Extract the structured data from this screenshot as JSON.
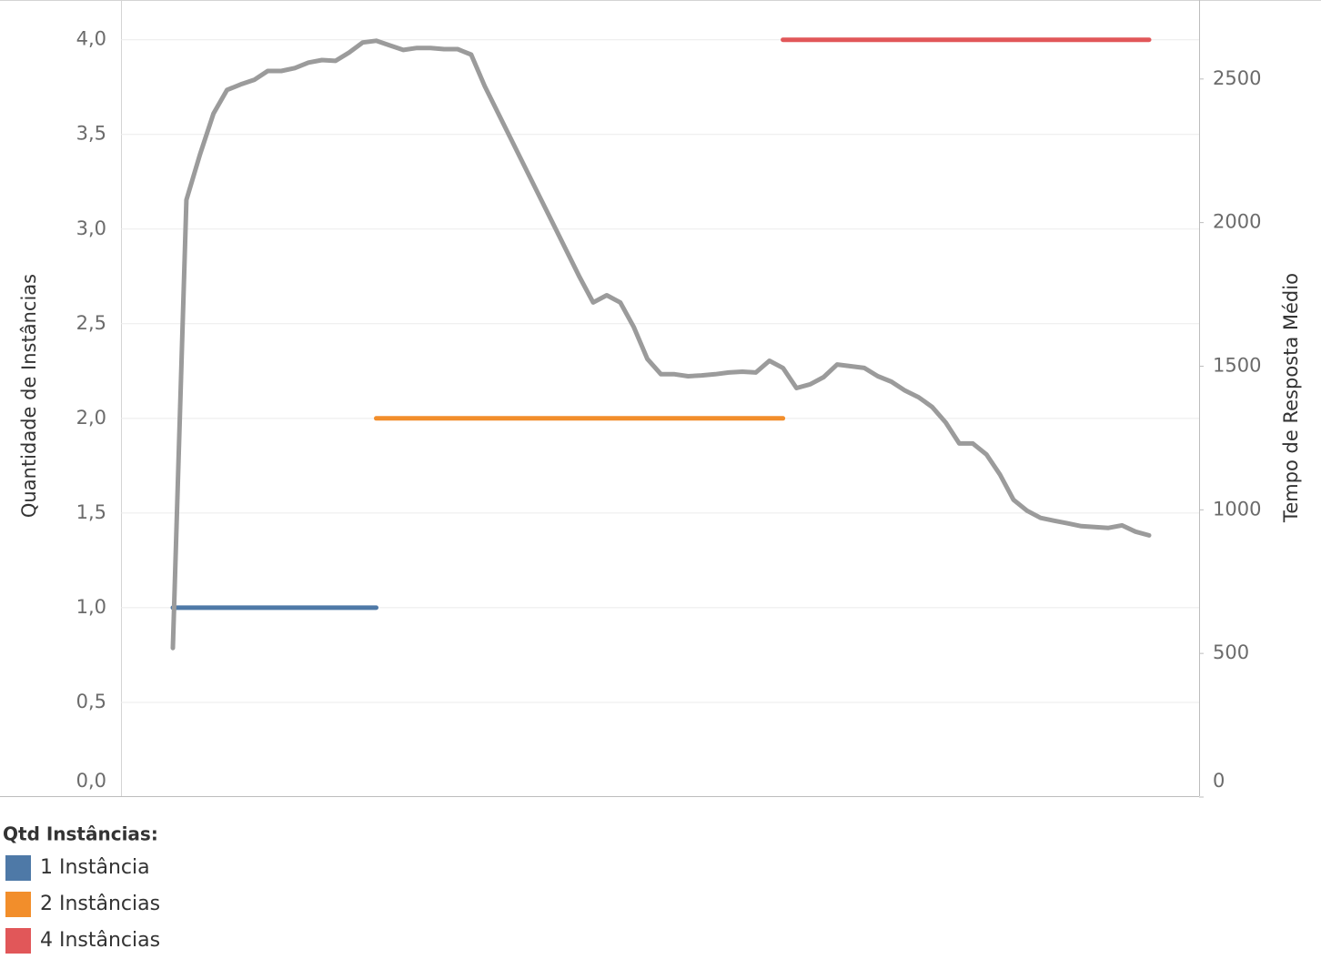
{
  "chart_data": {
    "type": "line",
    "y_label": "Quantidade de Instâncias",
    "y2_label": "Tempo de Resposta Médio",
    "legend_title": "Qtd Instâncias:",
    "categories": [
      null,
      null,
      null,
      null,
      null,
      null,
      null,
      null,
      null,
      null,
      null,
      null,
      null,
      null,
      null,
      null,
      null,
      null,
      null,
      null,
      null,
      null,
      null,
      null,
      null,
      null,
      null,
      null,
      null,
      null,
      null,
      null,
      null,
      null,
      null,
      null,
      null,
      null,
      null,
      null,
      null,
      null,
      null,
      null,
      null,
      null,
      null,
      null,
      null,
      null,
      null,
      null,
      null,
      null,
      null,
      null,
      null,
      null,
      null,
      null,
      null,
      null,
      null,
      null,
      null,
      null,
      null,
      null,
      null,
      null,
      null,
      null,
      null
    ],
    "ylim": [
      0,
      4.21
    ],
    "yticks": [
      {
        "value": 0,
        "label": "0,0"
      },
      {
        "value": 0.5,
        "label": "0,5"
      },
      {
        "value": 1,
        "label": "1,0"
      },
      {
        "value": 1.5,
        "label": "1,5"
      },
      {
        "value": 2,
        "label": "2,0"
      },
      {
        "value": 2.5,
        "label": "2,5"
      },
      {
        "value": 3,
        "label": "3,0"
      },
      {
        "value": 3.5,
        "label": "3,5"
      },
      {
        "value": 4,
        "label": "4,0"
      }
    ],
    "y2lim": [
      0,
      2775
    ],
    "y2ticks": [
      0,
      500,
      1000,
      1500,
      2000,
      2500
    ],
    "grid": true,
    "series": [
      {
        "name": "1 Instância",
        "color": "#4e79a7",
        "values": [
          1,
          1,
          1,
          1,
          1,
          1,
          1,
          1,
          1,
          1,
          1,
          1,
          1,
          1,
          1,
          1,
          null,
          null,
          null,
          null,
          null,
          null,
          null,
          null,
          null,
          null,
          null,
          null,
          null,
          null,
          null,
          null,
          null,
          null,
          null,
          null,
          null,
          null,
          null,
          null,
          null,
          null,
          null,
          null,
          null,
          null,
          null,
          null,
          null,
          null,
          null,
          null,
          null,
          null,
          null,
          null,
          null,
          null,
          null,
          null,
          null,
          null,
          null,
          null,
          null,
          null,
          null,
          null,
          null,
          null,
          null,
          null,
          null
        ]
      },
      {
        "name": "2 Instâncias",
        "color": "#f28e2b",
        "values": [
          null,
          null,
          null,
          null,
          null,
          null,
          null,
          null,
          null,
          null,
          null,
          null,
          null,
          null,
          null,
          2,
          2,
          2,
          2,
          2,
          2,
          2,
          2,
          2,
          2,
          2,
          2,
          2,
          2,
          2,
          2,
          2,
          2,
          2,
          2,
          2,
          2,
          2,
          2,
          2,
          2,
          2,
          2,
          2,
          2,
          2,
          null,
          null,
          null,
          null,
          null,
          null,
          null,
          null,
          null,
          null,
          null,
          null,
          null,
          null,
          null,
          null,
          null,
          null,
          null,
          null,
          null,
          null,
          null,
          null,
          null,
          null,
          null
        ]
      },
      {
        "name": "4 Instâncias",
        "color": "#e15759",
        "values": [
          null,
          null,
          null,
          null,
          null,
          null,
          null,
          null,
          null,
          null,
          null,
          null,
          null,
          null,
          null,
          null,
          null,
          null,
          null,
          null,
          null,
          null,
          null,
          null,
          null,
          null,
          null,
          null,
          null,
          null,
          null,
          null,
          null,
          null,
          null,
          null,
          null,
          null,
          null,
          null,
          null,
          null,
          null,
          null,
          null,
          4,
          4,
          4,
          4,
          4,
          4,
          4,
          4,
          4,
          4,
          4,
          4,
          4,
          4,
          4,
          4,
          4,
          4,
          4,
          4,
          4,
          4,
          4,
          4,
          4,
          4,
          4,
          4
        ]
      },
      {
        "color": "#9b9b9b",
        "axis": "y2",
        "values": [
          519,
          2079,
          2237,
          2380,
          2462,
          2481,
          2497,
          2528,
          2528,
          2538,
          2557,
          2566,
          2563,
          2592,
          2627,
          2633,
          2617,
          2601,
          2608,
          2608,
          2604,
          2604,
          2585,
          2475,
          2380,
          2285,
          2190,
          2095,
          2000,
          1905,
          1810,
          1722,
          1747,
          1722,
          1636,
          1525,
          1472,
          1472,
          1465,
          1468,
          1472,
          1478,
          1481,
          1478,
          1519,
          1494,
          1424,
          1437,
          1462,
          1506,
          1500,
          1494,
          1465,
          1446,
          1415,
          1392,
          1358,
          1304,
          1231,
          1231,
          1193,
          1123,
          1035,
          997,
          972,
          962,
          953,
          943,
          940,
          937,
          946,
          924,
          911
        ]
      }
    ]
  }
}
